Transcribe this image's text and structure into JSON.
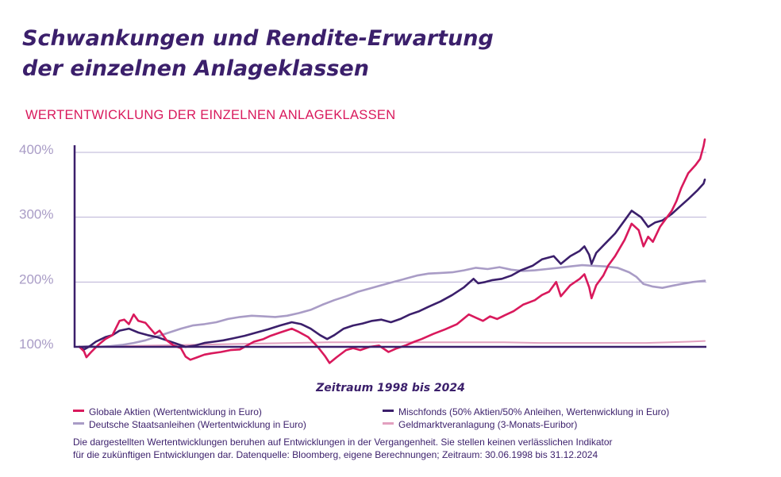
{
  "header": {
    "title_line1": "Schwankungen und Rendite-Erwartung",
    "title_line2": "der einzelnen Anlageklassen",
    "subtitle": "WERTENTWICKLUNG DER EINZELNEN ANLAGEKLASSEN"
  },
  "colors": {
    "title": "#3b1f6b",
    "subtitle": "#d9195c",
    "axis": "#3b1f6b",
    "grid": "#b9b0d4",
    "tick_label": "#a99cc6"
  },
  "chart_data": {
    "type": "line",
    "title": "WERTENTWICKLUNG DER EINZELNEN ANLAGEKLASSEN",
    "xlabel": "Zeitraum 1998 bis 2024",
    "ylabel": "",
    "x_range": [
      1998.5,
      2025.0
    ],
    "ylim": [
      95,
      420
    ],
    "yticks": [
      100,
      200,
      300,
      400
    ],
    "ytick_labels": [
      "100%",
      "200%",
      "300%",
      "400%"
    ],
    "grid": true,
    "legend_position": "bottom",
    "series": [
      {
        "name": "Globale Aktien (Wertentwicklung in Euro)",
        "color": "#d9195c",
        "points": [
          [
            1998.5,
            100
          ],
          [
            1998.7,
            93
          ],
          [
            1998.8,
            84
          ],
          [
            1999.0,
            92
          ],
          [
            1999.3,
            103
          ],
          [
            1999.6,
            112
          ],
          [
            1999.9,
            118
          ],
          [
            2000.2,
            140
          ],
          [
            2000.4,
            142
          ],
          [
            2000.6,
            135
          ],
          [
            2000.8,
            150
          ],
          [
            2001.0,
            140
          ],
          [
            2001.3,
            137
          ],
          [
            2001.7,
            120
          ],
          [
            2001.9,
            125
          ],
          [
            2002.2,
            110
          ],
          [
            2002.5,
            102
          ],
          [
            2002.8,
            98
          ],
          [
            2003.0,
            85
          ],
          [
            2003.2,
            80
          ],
          [
            2003.5,
            84
          ],
          [
            2003.8,
            88
          ],
          [
            2004.1,
            90
          ],
          [
            2004.5,
            92
          ],
          [
            2004.9,
            95
          ],
          [
            2005.3,
            96
          ],
          [
            2005.6,
            102
          ],
          [
            2005.9,
            108
          ],
          [
            2006.3,
            112
          ],
          [
            2006.6,
            117
          ],
          [
            2007.0,
            122
          ],
          [
            2007.5,
            128
          ],
          [
            2007.8,
            123
          ],
          [
            2008.2,
            115
          ],
          [
            2008.6,
            100
          ],
          [
            2008.9,
            86
          ],
          [
            2009.1,
            75
          ],
          [
            2009.4,
            84
          ],
          [
            2009.8,
            95
          ],
          [
            2010.1,
            98
          ],
          [
            2010.4,
            95
          ],
          [
            2010.8,
            100
          ],
          [
            2011.2,
            102
          ],
          [
            2011.6,
            92
          ],
          [
            2011.9,
            97
          ],
          [
            2012.3,
            102
          ],
          [
            2012.7,
            108
          ],
          [
            2013.0,
            112
          ],
          [
            2013.5,
            120
          ],
          [
            2014.0,
            127
          ],
          [
            2014.5,
            135
          ],
          [
            2015.0,
            150
          ],
          [
            2015.3,
            145
          ],
          [
            2015.6,
            140
          ],
          [
            2015.9,
            147
          ],
          [
            2016.2,
            143
          ],
          [
            2016.6,
            150
          ],
          [
            2016.9,
            155
          ],
          [
            2017.3,
            165
          ],
          [
            2017.8,
            172
          ],
          [
            2018.1,
            180
          ],
          [
            2018.4,
            185
          ],
          [
            2018.7,
            200
          ],
          [
            2018.9,
            178
          ],
          [
            2019.3,
            195
          ],
          [
            2019.7,
            205
          ],
          [
            2019.9,
            212
          ],
          [
            2020.1,
            192
          ],
          [
            2020.2,
            175
          ],
          [
            2020.4,
            195
          ],
          [
            2020.7,
            210
          ],
          [
            2020.9,
            225
          ],
          [
            2021.2,
            240
          ],
          [
            2021.6,
            265
          ],
          [
            2021.9,
            290
          ],
          [
            2022.2,
            280
          ],
          [
            2022.4,
            255
          ],
          [
            2022.6,
            270
          ],
          [
            2022.8,
            262
          ],
          [
            2023.1,
            285
          ],
          [
            2023.4,
            300
          ],
          [
            2023.6,
            310
          ],
          [
            2023.8,
            325
          ],
          [
            2024.0,
            345
          ],
          [
            2024.3,
            368
          ],
          [
            2024.6,
            380
          ],
          [
            2024.8,
            390
          ],
          [
            2024.95,
            410
          ],
          [
            2025.0,
            420
          ]
        ]
      },
      {
        "name": "Mischfonds (50% Aktien/50% Anleihen, Wertenwicklung in Euro)",
        "color": "#3b1f6b",
        "points": [
          [
            1998.5,
            100
          ],
          [
            1998.7,
            96
          ],
          [
            1998.9,
            100
          ],
          [
            1999.2,
            108
          ],
          [
            1999.6,
            115
          ],
          [
            1999.9,
            118
          ],
          [
            2000.2,
            125
          ],
          [
            2000.6,
            128
          ],
          [
            2001.0,
            122
          ],
          [
            2001.4,
            118
          ],
          [
            2001.8,
            115
          ],
          [
            2002.2,
            110
          ],
          [
            2002.6,
            105
          ],
          [
            2003.0,
            100
          ],
          [
            2003.4,
            102
          ],
          [
            2003.8,
            106
          ],
          [
            2004.2,
            108
          ],
          [
            2004.6,
            110
          ],
          [
            2005.0,
            113
          ],
          [
            2005.5,
            117
          ],
          [
            2006.0,
            122
          ],
          [
            2006.5,
            127
          ],
          [
            2007.0,
            133
          ],
          [
            2007.5,
            138
          ],
          [
            2007.9,
            135
          ],
          [
            2008.3,
            128
          ],
          [
            2008.7,
            118
          ],
          [
            2009.0,
            112
          ],
          [
            2009.3,
            118
          ],
          [
            2009.7,
            128
          ],
          [
            2010.1,
            133
          ],
          [
            2010.5,
            136
          ],
          [
            2010.9,
            140
          ],
          [
            2011.3,
            142
          ],
          [
            2011.7,
            138
          ],
          [
            2012.1,
            143
          ],
          [
            2012.5,
            150
          ],
          [
            2012.9,
            155
          ],
          [
            2013.3,
            162
          ],
          [
            2013.8,
            170
          ],
          [
            2014.3,
            180
          ],
          [
            2014.8,
            192
          ],
          [
            2015.2,
            205
          ],
          [
            2015.4,
            198
          ],
          [
            2015.7,
            200
          ],
          [
            2016.0,
            203
          ],
          [
            2016.4,
            205
          ],
          [
            2016.8,
            210
          ],
          [
            2017.2,
            218
          ],
          [
            2017.7,
            225
          ],
          [
            2018.1,
            235
          ],
          [
            2018.6,
            240
          ],
          [
            2018.9,
            228
          ],
          [
            2019.3,
            240
          ],
          [
            2019.7,
            248
          ],
          [
            2019.9,
            255
          ],
          [
            2020.1,
            242
          ],
          [
            2020.2,
            228
          ],
          [
            2020.4,
            245
          ],
          [
            2020.8,
            260
          ],
          [
            2021.2,
            275
          ],
          [
            2021.6,
            295
          ],
          [
            2021.9,
            310
          ],
          [
            2022.3,
            300
          ],
          [
            2022.6,
            285
          ],
          [
            2022.9,
            292
          ],
          [
            2023.2,
            295
          ],
          [
            2023.6,
            305
          ],
          [
            2023.9,
            315
          ],
          [
            2024.3,
            328
          ],
          [
            2024.7,
            342
          ],
          [
            2024.95,
            352
          ],
          [
            2025.0,
            358
          ]
        ]
      },
      {
        "name": "Deutsche Staatsanleihen (Wertentwicklung in Euro)",
        "color": "#a99cc6",
        "points": [
          [
            1998.5,
            100
          ],
          [
            1998.9,
            101
          ],
          [
            1999.3,
            100
          ],
          [
            1999.8,
            101
          ],
          [
            2000.3,
            103
          ],
          [
            2000.8,
            106
          ],
          [
            2001.3,
            110
          ],
          [
            2001.8,
            116
          ],
          [
            2002.3,
            122
          ],
          [
            2002.8,
            128
          ],
          [
            2003.3,
            133
          ],
          [
            2003.8,
            135
          ],
          [
            2004.3,
            138
          ],
          [
            2004.8,
            143
          ],
          [
            2005.3,
            146
          ],
          [
            2005.8,
            148
          ],
          [
            2006.3,
            147
          ],
          [
            2006.8,
            146
          ],
          [
            2007.3,
            148
          ],
          [
            2007.8,
            152
          ],
          [
            2008.3,
            157
          ],
          [
            2008.8,
            165
          ],
          [
            2009.3,
            172
          ],
          [
            2009.8,
            178
          ],
          [
            2010.3,
            185
          ],
          [
            2010.8,
            190
          ],
          [
            2011.3,
            195
          ],
          [
            2011.8,
            200
          ],
          [
            2012.3,
            205
          ],
          [
            2012.8,
            210
          ],
          [
            2013.3,
            213
          ],
          [
            2013.8,
            214
          ],
          [
            2014.3,
            215
          ],
          [
            2014.8,
            218
          ],
          [
            2015.3,
            222
          ],
          [
            2015.8,
            220
          ],
          [
            2016.3,
            223
          ],
          [
            2016.8,
            219
          ],
          [
            2017.3,
            217
          ],
          [
            2017.8,
            218
          ],
          [
            2018.3,
            220
          ],
          [
            2018.8,
            222
          ],
          [
            2019.3,
            224
          ],
          [
            2019.8,
            226
          ],
          [
            2020.3,
            225
          ],
          [
            2020.8,
            224
          ],
          [
            2021.3,
            222
          ],
          [
            2021.8,
            215
          ],
          [
            2022.1,
            208
          ],
          [
            2022.4,
            197
          ],
          [
            2022.8,
            193
          ],
          [
            2023.2,
            191
          ],
          [
            2023.6,
            194
          ],
          [
            2024.0,
            197
          ],
          [
            2024.5,
            200
          ],
          [
            2025.0,
            202
          ]
        ]
      },
      {
        "name": "Geldmarktveranlagung (3-Monats-Euribor)",
        "color": "#e2a0bf",
        "points": [
          [
            1998.5,
            100
          ],
          [
            2000.0,
            101
          ],
          [
            2001.5,
            102
          ],
          [
            2003.0,
            103
          ],
          [
            2004.5,
            104
          ],
          [
            2006.0,
            105
          ],
          [
            2007.5,
            106
          ],
          [
            2009.0,
            107
          ],
          [
            2010.5,
            107
          ],
          [
            2012.0,
            107
          ],
          [
            2013.5,
            107
          ],
          [
            2015.0,
            107
          ],
          [
            2016.5,
            107
          ],
          [
            2018.0,
            106
          ],
          [
            2019.5,
            106
          ],
          [
            2021.0,
            106
          ],
          [
            2022.5,
            106
          ],
          [
            2023.5,
            107
          ],
          [
            2024.3,
            108
          ],
          [
            2025.0,
            109
          ]
        ]
      }
    ]
  },
  "legend": {
    "items": [
      {
        "label": "Globale Aktien (Wertentwicklung in Euro)",
        "color": "#d9195c"
      },
      {
        "label": "Mischfonds (50% Aktien/50% Anleihen, Wertenwicklung in Euro)",
        "color": "#3b1f6b"
      },
      {
        "label": "Deutsche Staatsanleihen (Wertentwicklung in Euro)",
        "color": "#a99cc6"
      },
      {
        "label": "Geldmarktveranlagung (3-Monats-Euribor)",
        "color": "#e2a0bf"
      }
    ]
  },
  "footnote": {
    "line1": "Die dargestellten Wertentwicklungen beruhen auf Entwicklungen in der Vergangenheit. Sie stellen keinen verlässlichen Indikator",
    "line2": "für die zukünftigen Entwicklungen dar. Datenquelle: Bloomberg, eigene Berechnungen; Zeitraum: 30.06.1998 bis 31.12.2024"
  }
}
